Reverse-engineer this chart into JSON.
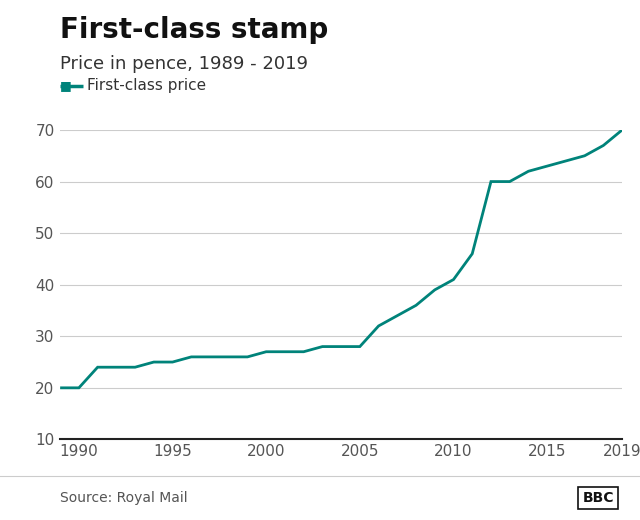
{
  "title": "First-class stamp",
  "subtitle": "Price in pence, 1989 - 2019",
  "legend_label": "First-class price",
  "source": "Source: Royal Mail",
  "bbc_label": "BBC",
  "line_color": "#00837A",
  "line_width": 2.0,
  "background_color": "#ffffff",
  "years": [
    1989,
    1990,
    1991,
    1992,
    1993,
    1994,
    1995,
    1996,
    1997,
    1998,
    1999,
    2000,
    2001,
    2002,
    2003,
    2004,
    2005,
    2006,
    2007,
    2008,
    2009,
    2010,
    2011,
    2012,
    2013,
    2014,
    2015,
    2016,
    2017,
    2018,
    2019
  ],
  "prices": [
    20,
    20,
    24,
    24,
    24,
    25,
    25,
    26,
    26,
    26,
    26,
    27,
    27,
    27,
    28,
    28,
    28,
    32,
    34,
    36,
    39,
    41,
    46,
    60,
    60,
    62,
    63,
    64,
    65,
    67,
    70
  ],
  "xlim": [
    1989,
    2019
  ],
  "ylim": [
    10,
    70
  ],
  "yticks": [
    10,
    20,
    30,
    40,
    50,
    60,
    70
  ],
  "xticks": [
    1990,
    1995,
    2000,
    2005,
    2010,
    2015,
    2019
  ],
  "grid_color": "#cccccc",
  "tick_color": "#555555",
  "title_fontsize": 20,
  "subtitle_fontsize": 13,
  "legend_fontsize": 11,
  "tick_fontsize": 11,
  "source_fontsize": 10
}
